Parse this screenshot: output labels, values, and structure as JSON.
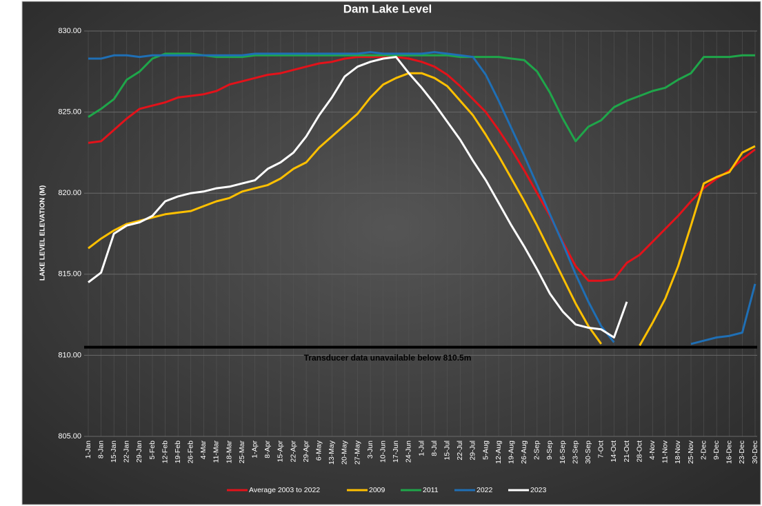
{
  "chart_data": {
    "type": "line",
    "title": "Dam Lake Level",
    "y_label": "LAKE LEVEL ELEVATION (M)",
    "categories": [
      "1-Jan",
      "8-Jan",
      "15-Jan",
      "22-Jan",
      "29-Jan",
      "5-Feb",
      "12-Feb",
      "19-Feb",
      "26-Feb",
      "4-Mar",
      "11-Mar",
      "18-Mar",
      "25-Mar",
      "1-Apr",
      "8-Apr",
      "15-Apr",
      "22-Apr",
      "29-Apr",
      "6-May",
      "13-May",
      "20-May",
      "27-May",
      "3-Jun",
      "10-Jun",
      "17-Jun",
      "24-Jun",
      "1-Jul",
      "8-Jul",
      "15-Jul",
      "22-Jul",
      "29-Jul",
      "5-Aug",
      "12-Aug",
      "19-Aug",
      "26-Aug",
      "2-Sep",
      "9-Sep",
      "16-Sep",
      "23-Sep",
      "30-Sep",
      "7-Oct",
      "14-Oct",
      "21-Oct",
      "28-Oct",
      "4-Nov",
      "11-Nov",
      "18-Nov",
      "25-Nov",
      "2-Dec",
      "9-Dec",
      "16-Dec",
      "23-Dec",
      "30-Dec"
    ],
    "ylim": [
      805,
      830
    ],
    "yticks": [
      {
        "value": 805,
        "label": "805.00"
      },
      {
        "value": 810,
        "label": "810.00"
      },
      {
        "value": 815,
        "label": "815.00"
      },
      {
        "value": 820,
        "label": "820.00"
      },
      {
        "value": 825,
        "label": "825.00"
      },
      {
        "value": 830,
        "label": "830.00"
      }
    ],
    "grid": true,
    "legend": "bottom",
    "threshold": {
      "value": 810.5,
      "label": "Transducer data unavailable below 810.5m",
      "color": "#000000"
    },
    "series": [
      {
        "name": "Average 2003 to 2022",
        "color": "#e3121a",
        "values": [
          823.1,
          823.2,
          823.9,
          824.6,
          825.2,
          825.4,
          825.6,
          825.9,
          826.0,
          826.1,
          826.3,
          826.7,
          826.9,
          827.1,
          827.3,
          827.4,
          827.6,
          827.8,
          828.0,
          828.1,
          828.3,
          828.4,
          828.4,
          828.4,
          828.4,
          828.3,
          828.1,
          827.8,
          827.3,
          826.6,
          825.8,
          825.0,
          823.9,
          822.7,
          821.4,
          820.0,
          818.6,
          817.0,
          815.5,
          814.6,
          814.6,
          814.7,
          815.7,
          816.2,
          817.0,
          817.8,
          818.6,
          819.5,
          820.3,
          820.9,
          821.4,
          822.1,
          822.7
        ]
      },
      {
        "name": "2009",
        "color": "#ffc000",
        "values": [
          816.6,
          817.2,
          817.7,
          818.1,
          818.3,
          818.5,
          818.7,
          818.8,
          818.9,
          819.2,
          819.5,
          819.7,
          820.1,
          820.3,
          820.5,
          820.9,
          821.5,
          821.9,
          822.8,
          823.5,
          824.2,
          824.9,
          825.9,
          826.7,
          827.1,
          827.4,
          827.4,
          827.1,
          826.6,
          825.7,
          824.8,
          823.6,
          822.3,
          820.9,
          819.5,
          818.0,
          816.4,
          814.8,
          813.2,
          811.8,
          810.7,
          null,
          null,
          810.6,
          812.0,
          813.5,
          815.5,
          818.0,
          820.6,
          821.0,
          821.3,
          822.5,
          822.9
        ]
      },
      {
        "name": "2011",
        "color": "#1fa64a",
        "values": [
          824.7,
          825.2,
          825.8,
          827.0,
          827.5,
          828.3,
          828.6,
          828.6,
          828.6,
          828.5,
          828.4,
          828.4,
          828.4,
          828.5,
          828.5,
          828.5,
          828.5,
          828.5,
          828.5,
          828.5,
          828.5,
          828.5,
          828.5,
          828.5,
          828.5,
          828.5,
          828.5,
          828.5,
          828.5,
          828.4,
          828.4,
          828.4,
          828.4,
          828.3,
          828.2,
          827.5,
          826.2,
          824.6,
          823.2,
          824.1,
          824.5,
          825.3,
          825.7,
          826.0,
          826.3,
          826.5,
          827.0,
          827.4,
          828.4,
          828.4,
          828.4,
          828.5,
          828.5
        ]
      },
      {
        "name": "2022",
        "color": "#1f6fb5",
        "values": [
          828.3,
          828.3,
          828.5,
          828.5,
          828.4,
          828.5,
          828.5,
          828.5,
          828.5,
          828.5,
          828.5,
          828.5,
          828.5,
          828.6,
          828.6,
          828.6,
          828.6,
          828.6,
          828.6,
          828.6,
          828.6,
          828.6,
          828.7,
          828.6,
          828.6,
          828.6,
          828.6,
          828.7,
          828.6,
          828.5,
          828.4,
          827.3,
          825.7,
          824.0,
          822.3,
          820.5,
          818.7,
          816.9,
          815.0,
          813.3,
          811.8,
          810.8,
          null,
          null,
          null,
          null,
          null,
          810.7,
          810.9,
          811.1,
          811.2,
          811.4,
          814.4
        ]
      },
      {
        "name": "2023",
        "color": "#ffffff",
        "values": [
          814.5,
          815.1,
          817.5,
          818.0,
          818.2,
          818.6,
          819.5,
          819.8,
          820.0,
          820.1,
          820.3,
          820.4,
          820.6,
          820.8,
          821.5,
          821.9,
          822.5,
          823.5,
          824.8,
          825.9,
          827.2,
          827.8,
          828.1,
          828.3,
          828.4,
          827.4,
          826.5,
          825.5,
          824.4,
          823.3,
          822.0,
          820.8,
          819.4,
          818.0,
          816.7,
          815.3,
          813.8,
          812.7,
          811.9,
          811.7,
          811.6,
          811.1,
          813.3,
          null,
          null,
          null,
          null,
          null,
          null,
          null,
          null,
          null,
          null
        ]
      }
    ]
  }
}
